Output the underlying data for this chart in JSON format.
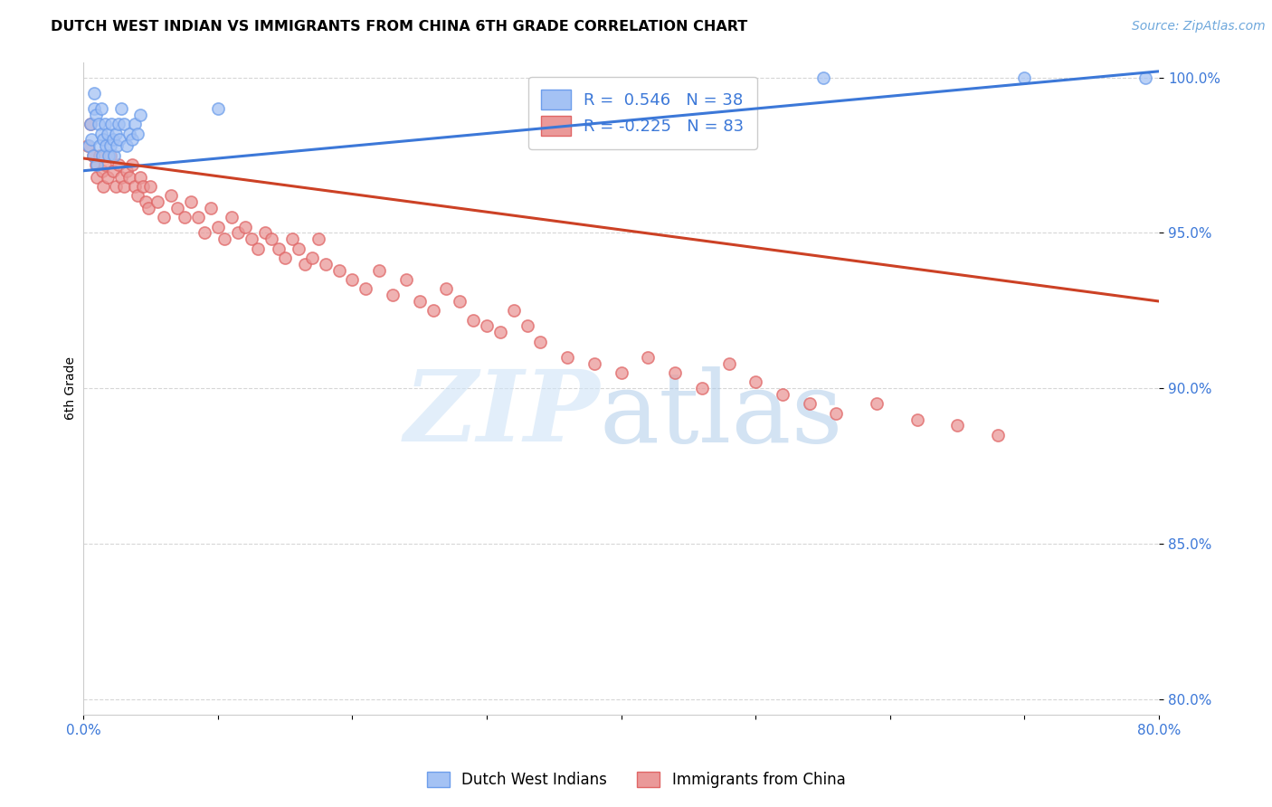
{
  "title": "DUTCH WEST INDIAN VS IMMIGRANTS FROM CHINA 6TH GRADE CORRELATION CHART",
  "source": "Source: ZipAtlas.com",
  "ylabel": "6th Grade",
  "xlim": [
    0.0,
    0.8
  ],
  "ylim": [
    0.795,
    1.005
  ],
  "yticks": [
    0.8,
    0.85,
    0.9,
    0.95,
    1.0
  ],
  "ytick_labels": [
    "80.0%",
    "85.0%",
    "90.0%",
    "95.0%",
    "100.0%"
  ],
  "xticks": [
    0.0,
    0.1,
    0.2,
    0.3,
    0.4,
    0.5,
    0.6,
    0.7,
    0.8
  ],
  "r_blue": 0.546,
  "n_blue": 38,
  "r_pink": -0.225,
  "n_pink": 83,
  "blue_fill": "#a4c2f4",
  "blue_edge": "#6d9eeb",
  "pink_fill": "#ea9999",
  "pink_edge": "#e06666",
  "blue_line_color": "#3c78d8",
  "pink_line_color": "#cc4125",
  "blue_scatter_x": [
    0.004,
    0.005,
    0.006,
    0.007,
    0.008,
    0.008,
    0.009,
    0.01,
    0.011,
    0.012,
    0.013,
    0.013,
    0.014,
    0.015,
    0.016,
    0.017,
    0.018,
    0.019,
    0.02,
    0.021,
    0.022,
    0.023,
    0.024,
    0.025,
    0.026,
    0.027,
    0.028,
    0.03,
    0.032,
    0.034,
    0.036,
    0.038,
    0.04,
    0.042,
    0.1,
    0.55,
    0.7,
    0.79
  ],
  "blue_scatter_y": [
    0.978,
    0.985,
    0.98,
    0.975,
    0.99,
    0.995,
    0.988,
    0.972,
    0.985,
    0.978,
    0.982,
    0.99,
    0.975,
    0.98,
    0.985,
    0.978,
    0.982,
    0.975,
    0.978,
    0.985,
    0.98,
    0.975,
    0.982,
    0.978,
    0.985,
    0.98,
    0.99,
    0.985,
    0.978,
    0.982,
    0.98,
    0.985,
    0.982,
    0.988,
    0.99,
    1.0,
    1.0,
    1.0
  ],
  "pink_scatter_x": [
    0.003,
    0.005,
    0.007,
    0.009,
    0.01,
    0.012,
    0.014,
    0.015,
    0.016,
    0.018,
    0.02,
    0.022,
    0.024,
    0.026,
    0.028,
    0.03,
    0.032,
    0.034,
    0.036,
    0.038,
    0.04,
    0.042,
    0.044,
    0.046,
    0.048,
    0.05,
    0.055,
    0.06,
    0.065,
    0.07,
    0.075,
    0.08,
    0.085,
    0.09,
    0.095,
    0.1,
    0.105,
    0.11,
    0.115,
    0.12,
    0.125,
    0.13,
    0.135,
    0.14,
    0.145,
    0.15,
    0.155,
    0.16,
    0.165,
    0.17,
    0.175,
    0.18,
    0.19,
    0.2,
    0.21,
    0.22,
    0.23,
    0.24,
    0.25,
    0.26,
    0.27,
    0.28,
    0.29,
    0.3,
    0.31,
    0.32,
    0.33,
    0.34,
    0.36,
    0.38,
    0.4,
    0.42,
    0.44,
    0.46,
    0.48,
    0.5,
    0.52,
    0.54,
    0.56,
    0.59,
    0.62,
    0.65,
    0.68
  ],
  "pink_scatter_y": [
    0.978,
    0.985,
    0.975,
    0.972,
    0.968,
    0.975,
    0.97,
    0.965,
    0.972,
    0.968,
    0.975,
    0.97,
    0.965,
    0.972,
    0.968,
    0.965,
    0.97,
    0.968,
    0.972,
    0.965,
    0.962,
    0.968,
    0.965,
    0.96,
    0.958,
    0.965,
    0.96,
    0.955,
    0.962,
    0.958,
    0.955,
    0.96,
    0.955,
    0.95,
    0.958,
    0.952,
    0.948,
    0.955,
    0.95,
    0.952,
    0.948,
    0.945,
    0.95,
    0.948,
    0.945,
    0.942,
    0.948,
    0.945,
    0.94,
    0.942,
    0.948,
    0.94,
    0.938,
    0.935,
    0.932,
    0.938,
    0.93,
    0.935,
    0.928,
    0.925,
    0.932,
    0.928,
    0.922,
    0.92,
    0.918,
    0.925,
    0.92,
    0.915,
    0.91,
    0.908,
    0.905,
    0.91,
    0.905,
    0.9,
    0.908,
    0.902,
    0.898,
    0.895,
    0.892,
    0.895,
    0.89,
    0.888,
    0.885
  ],
  "blue_trend_x": [
    0.0,
    0.8
  ],
  "blue_trend_y": [
    0.97,
    1.002
  ],
  "pink_trend_x": [
    0.0,
    0.8
  ],
  "pink_trend_y": [
    0.974,
    0.928
  ]
}
